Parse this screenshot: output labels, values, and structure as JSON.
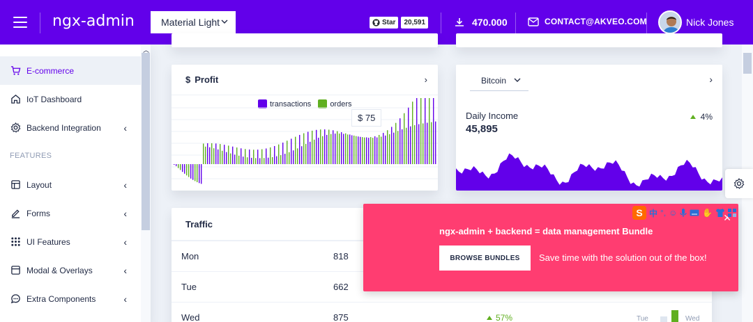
{
  "header": {
    "logo": "ngx-admin",
    "theme": "Material Light",
    "github_star_label": "Star",
    "github_star_count": "20,591",
    "downloads": "470.000",
    "contact": "CONTACT@AKVEO.COM",
    "user_name": "Nick Jones"
  },
  "sidebar": {
    "items": [
      {
        "label": "E-commerce",
        "icon": "shopping-cart-icon",
        "active": true
      },
      {
        "label": "IoT Dashboard",
        "icon": "home-icon"
      },
      {
        "label": "Backend Integration",
        "icon": "settings-icon",
        "arrow": true
      }
    ],
    "group_label": "FEATURES",
    "feature_items": [
      {
        "label": "Layout",
        "icon": "layout-icon",
        "arrow": true
      },
      {
        "label": "Forms",
        "icon": "edit-icon",
        "arrow": true
      },
      {
        "label": "UI Features",
        "icon": "keypad-icon",
        "arrow": true
      },
      {
        "label": "Modal & Overlays",
        "icon": "browser-icon",
        "arrow": true
      },
      {
        "label": "Extra Components",
        "icon": "message-circle-icon",
        "arrow": true
      }
    ]
  },
  "profit_card": {
    "title": "Profit",
    "currency_symbol": "$",
    "legend": [
      "transactions",
      "orders"
    ],
    "tooltip": "$ 75",
    "colors": {
      "transactions": "#6200ea",
      "orders": "#60af20"
    }
  },
  "bitcoin_card": {
    "select": "Bitcoin",
    "label": "Daily Income",
    "value": "45,895",
    "change": "4%"
  },
  "traffic_card": {
    "title": "Traffic",
    "rows": [
      {
        "day": "Mon",
        "value": "818"
      },
      {
        "day": "Tue",
        "value": "662"
      },
      {
        "day": "Wed",
        "value": "875",
        "change": "57%"
      }
    ],
    "mini_labels": [
      "Tue",
      "Wed"
    ]
  },
  "promo": {
    "title": "ngx-admin + backend = data management Bundle",
    "button": "BROWSE BUNDLES",
    "subtitle": "Save time with the solution out of the box!"
  },
  "ime_toolbar": {
    "label": "中"
  },
  "colors": {
    "primary": "#6200ea",
    "danger": "#ff3d71",
    "success": "#60af20"
  }
}
